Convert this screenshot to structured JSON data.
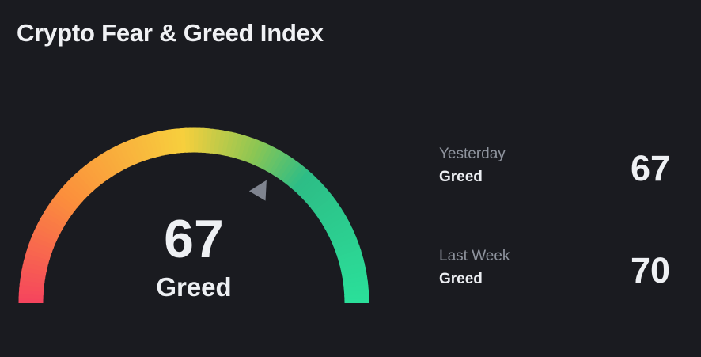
{
  "title": "Crypto Fear & Greed Index",
  "gauge": {
    "value": 67,
    "max": 100,
    "label": "Greed",
    "pointer_icon": "triangle-pointer-icon",
    "colors": {
      "fear": "#f5445e",
      "low": "#fb8f3c",
      "neutral": "#f7cf3d",
      "mid": "#8dc653",
      "greed": "#2dbd86",
      "extreme_greed": "#2be09a",
      "pointer": "#7f848f"
    }
  },
  "history": [
    {
      "period": "Yesterday",
      "sentiment": "Greed",
      "value": "67"
    },
    {
      "period": "Last Week",
      "sentiment": "Greed",
      "value": "70"
    }
  ],
  "background": "#1a1b20"
}
